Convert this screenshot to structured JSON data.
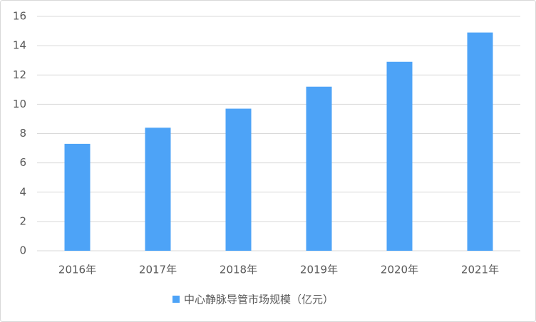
{
  "chart_data": {
    "type": "bar",
    "categories": [
      "2016年",
      "2017年",
      "2018年",
      "2019年",
      "2020年",
      "2021年"
    ],
    "series": [
      {
        "name": "中心静脉导管市场规模（亿元）",
        "color": "#4da3f7",
        "values": [
          7.3,
          8.4,
          9.7,
          11.2,
          12.9,
          14.9
        ]
      }
    ],
    "ylim": [
      0,
      16
    ],
    "yticks": [
      0,
      2,
      4,
      6,
      8,
      10,
      12,
      14,
      16
    ],
    "grid": true,
    "legend": "bottom"
  }
}
